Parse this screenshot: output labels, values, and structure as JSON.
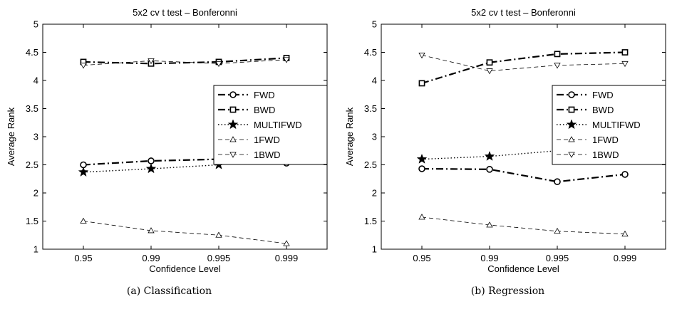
{
  "chart_data": [
    {
      "type": "line",
      "title": "5x2 cv t test – Bonferonni",
      "xlabel": "Confidence Level",
      "ylabel": "Average Rank",
      "caption": "(a)  Classification",
      "categories": [
        "0.95",
        "0.99",
        "0.995",
        "0.999"
      ],
      "ylim": [
        1,
        5
      ],
      "yticks": [
        "1",
        "1.5",
        "2",
        "2.5",
        "3",
        "3.5",
        "4",
        "4.5",
        "5"
      ],
      "legend_position": "right, upper-middle",
      "grid": false,
      "series": [
        {
          "name": "FWD",
          "values": [
            2.5,
            2.57,
            2.6,
            2.53
          ],
          "marker": "circle",
          "dash": "dashdot",
          "width": "bold"
        },
        {
          "name": "BWD",
          "values": [
            4.33,
            4.3,
            4.33,
            4.4
          ],
          "marker": "square",
          "dash": "dashdot",
          "width": "bold"
        },
        {
          "name": "MULTIFWD",
          "values": [
            2.37,
            2.43,
            2.5,
            2.6
          ],
          "marker": "star",
          "dash": "dotted",
          "width": "normal"
        },
        {
          "name": "1FWD",
          "values": [
            1.5,
            1.33,
            1.25,
            1.1
          ],
          "marker": "triangle-up",
          "dash": "dashed",
          "width": "thin"
        },
        {
          "name": "1BWD",
          "values": [
            4.27,
            4.35,
            4.3,
            4.37
          ],
          "marker": "triangle-down",
          "dash": "dashed",
          "width": "thin"
        }
      ]
    },
    {
      "type": "line",
      "title": "5x2 cv t test – Bonferonni",
      "xlabel": "Confidence Level",
      "ylabel": "Average Rank",
      "caption": "(b)  Regression",
      "categories": [
        "0.95",
        "0.99",
        "0.995",
        "0.999"
      ],
      "ylim": [
        1,
        5
      ],
      "yticks": [
        "1",
        "1.5",
        "2",
        "2.5",
        "3",
        "3.5",
        "4",
        "4.5",
        "5"
      ],
      "legend_position": "right, upper-middle",
      "grid": false,
      "series": [
        {
          "name": "FWD",
          "values": [
            2.43,
            2.42,
            2.2,
            2.33
          ],
          "marker": "circle",
          "dash": "dashdot",
          "width": "bold"
        },
        {
          "name": "BWD",
          "values": [
            3.95,
            4.32,
            4.47,
            4.5
          ],
          "marker": "square",
          "dash": "dashdot",
          "width": "bold"
        },
        {
          "name": "MULTIFWD",
          "values": [
            2.6,
            2.65,
            2.75,
            2.6
          ],
          "marker": "star",
          "dash": "dotted",
          "width": "normal"
        },
        {
          "name": "1FWD",
          "values": [
            1.57,
            1.43,
            1.32,
            1.27
          ],
          "marker": "triangle-up",
          "dash": "dashed",
          "width": "thin"
        },
        {
          "name": "1BWD",
          "values": [
            4.45,
            4.17,
            4.27,
            4.3
          ],
          "marker": "triangle-down",
          "dash": "dashed",
          "width": "thin"
        }
      ]
    }
  ]
}
